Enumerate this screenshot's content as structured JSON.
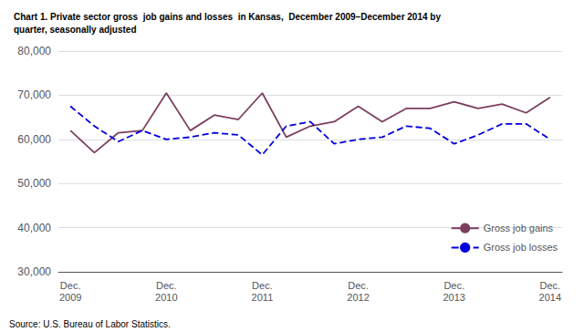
{
  "chart_data": {
    "type": "line",
    "title": "Chart 1. Private sector gross  job gains and losses  in Kansas,  December 2009–December 2014 by\nquarter, seasonally adjusted",
    "annotations": [
      "Source: U.S. Bureau of Labor Statistics."
    ],
    "categories": [
      "Dec.\n2009",
      null,
      null,
      null,
      "Dec.\n2010",
      null,
      null,
      null,
      "Dec.\n2011",
      null,
      null,
      null,
      "Dec.\n2012",
      null,
      null,
      null,
      "Dec.\n2013",
      null,
      null,
      null,
      "Dec.\n2014"
    ],
    "series": [
      {
        "name": "Gross job gains",
        "color": "#7B3F5E",
        "line_style": "solid",
        "values": [
          62000,
          57000,
          61500,
          62000,
          70500,
          62000,
          65500,
          64500,
          70500,
          60500,
          63000,
          64000,
          67500,
          64000,
          67000,
          67000,
          68500,
          67000,
          68000,
          66000,
          69500
        ]
      },
      {
        "name": "Gross job losses",
        "color": "#0000DD",
        "line_style": "dashed",
        "values": [
          67500,
          63000,
          59500,
          62000,
          60000,
          60500,
          61500,
          61000,
          56500,
          63000,
          64000,
          59000,
          60000,
          60500,
          63000,
          62500,
          59000,
          61000,
          63500,
          63500,
          60000
        ]
      }
    ],
    "ylim": [
      30000,
      80000
    ],
    "yticks": [
      {
        "value": 30000,
        "label": "30,000"
      },
      {
        "value": 40000,
        "label": "40,000"
      },
      {
        "value": 50000,
        "label": "50,000"
      },
      {
        "value": 60000,
        "label": "60,000"
      },
      {
        "value": 70000,
        "label": "70,000"
      },
      {
        "value": 80000,
        "label": "80,000"
      }
    ],
    "grid": true,
    "legend": "lower right"
  }
}
